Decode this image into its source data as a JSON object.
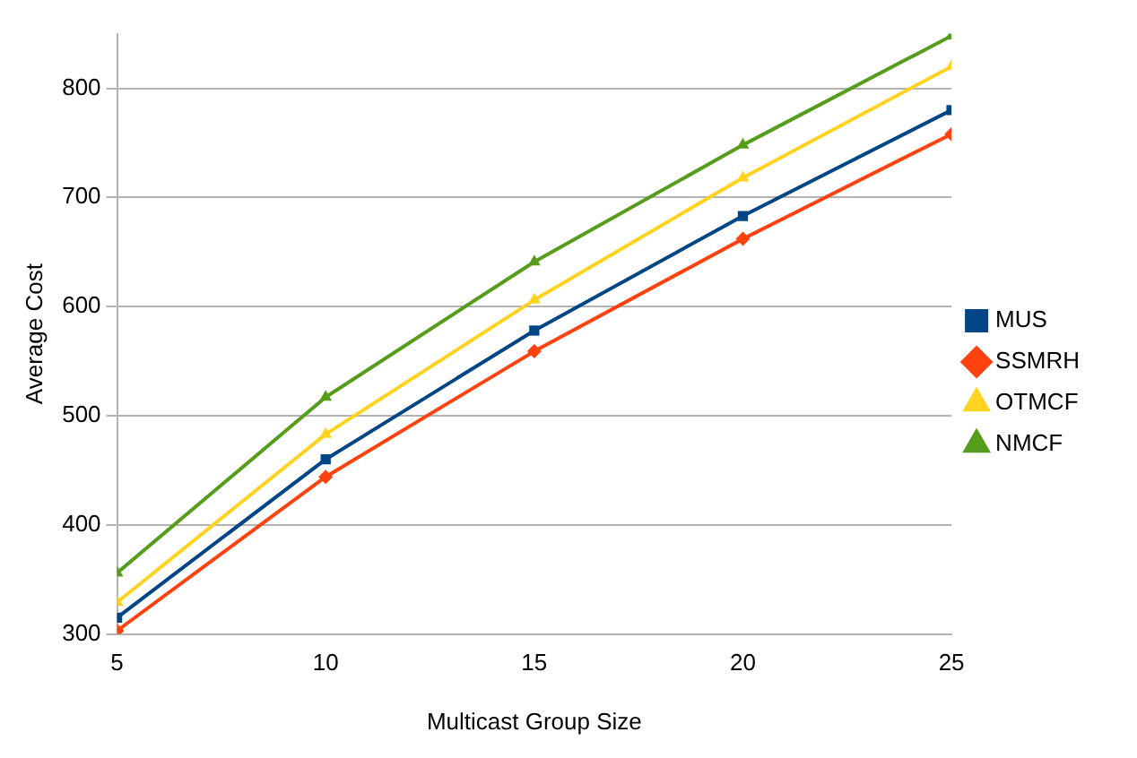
{
  "chart_data": {
    "type": "line",
    "xlabel": "Multicast Group Size",
    "ylabel": "Average Cost",
    "x": [
      5,
      10,
      15,
      20,
      25
    ],
    "xlim": [
      5,
      25
    ],
    "xticks": [
      5,
      10,
      15,
      20,
      25
    ],
    "ylim": [
      300,
      850
    ],
    "yticks": [
      300,
      400,
      500,
      600,
      700,
      800
    ],
    "grid": "y",
    "legend": "right",
    "line_style": "solid",
    "series": [
      {
        "name": "MUS",
        "color": "#004586",
        "marker": "square",
        "values": [
          315,
          460,
          578,
          683,
          780
        ]
      },
      {
        "name": "SSMRH",
        "color": "#ff420e",
        "marker": "diamond",
        "values": [
          303,
          444,
          559,
          662,
          758
        ]
      },
      {
        "name": "OTMCF",
        "color": "#ffd320",
        "marker": "triangle",
        "values": [
          329,
          483,
          606,
          718,
          820
        ]
      },
      {
        "name": "NMCF",
        "color": "#579d1c",
        "marker": "triangle",
        "values": [
          356,
          517,
          641,
          748,
          848
        ]
      }
    ]
  }
}
